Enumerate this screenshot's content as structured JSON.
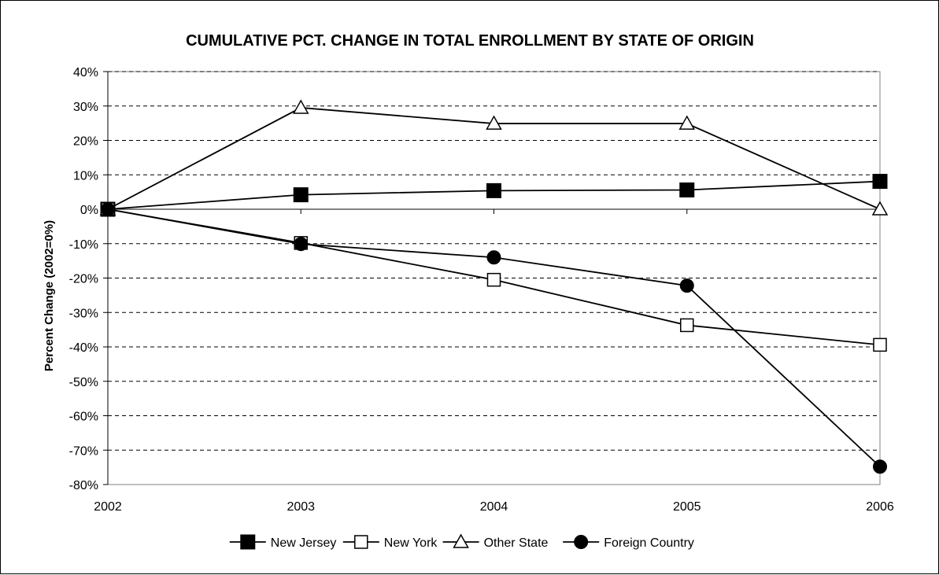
{
  "chart_data": {
    "type": "line",
    "title": "CUMULATIVE PCT. CHANGE IN TOTAL ENROLLMENT BY STATE OF ORIGIN",
    "xlabel": "",
    "ylabel": "Percent Change (2002=0%)",
    "x": [
      "2002",
      "2003",
      "2004",
      "2005",
      "2006"
    ],
    "ylim": [
      -80,
      40
    ],
    "yticks": [
      "40%",
      "30%",
      "20%",
      "10%",
      "0%",
      "-10%",
      "-20%",
      "-30%",
      "-40%",
      "-50%",
      "-60%",
      "-70%",
      "-80%"
    ],
    "yticks_values": [
      40,
      30,
      20,
      10,
      0,
      -10,
      -20,
      -30,
      -40,
      -50,
      -60,
      -70,
      -80
    ],
    "grid": "horizontal dashed",
    "legend_position": "bottom",
    "series": [
      {
        "name": "New Jersey",
        "marker": "filled-square",
        "values": [
          0,
          4.2,
          5.4,
          5.6,
          8.1
        ]
      },
      {
        "name": "New York",
        "marker": "open-square",
        "values": [
          0,
          -9.8,
          -20.5,
          -33.7,
          -39.4
        ]
      },
      {
        "name": "Other State",
        "marker": "open-triangle",
        "values": [
          0,
          29.5,
          24.9,
          24.9,
          0
        ]
      },
      {
        "name": "Foreign Country",
        "marker": "filled-circle",
        "values": [
          0,
          -10.1,
          -14.0,
          -22.2,
          -74.8
        ]
      }
    ],
    "colors": {
      "line": "#000000",
      "plot_bg": "#ffffff",
      "grid": "#000000"
    }
  }
}
